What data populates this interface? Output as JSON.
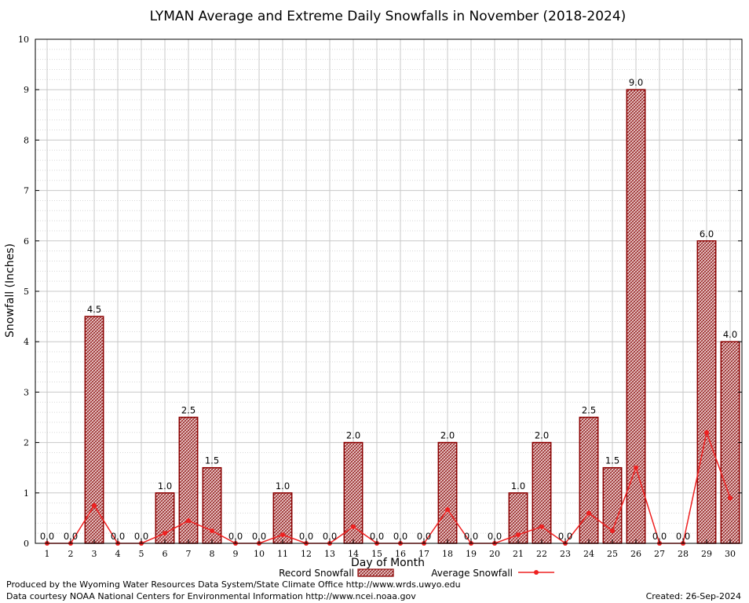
{
  "chart_data": {
    "type": "bar",
    "title": "LYMAN Average and Extreme Daily Snowfalls in November (2018-2024)",
    "xlabel": "Day of Month",
    "ylabel": "Snowfall (Inches)",
    "ylim": [
      0,
      10
    ],
    "yticks": [
      "0",
      "1",
      "2",
      "3",
      "4",
      "5",
      "6",
      "7",
      "8",
      "9",
      "10"
    ],
    "categories": [
      "1",
      "2",
      "3",
      "4",
      "5",
      "6",
      "7",
      "8",
      "9",
      "10",
      "11",
      "12",
      "13",
      "14",
      "15",
      "16",
      "17",
      "18",
      "19",
      "20",
      "21",
      "22",
      "23",
      "24",
      "25",
      "26",
      "27",
      "28",
      "29",
      "30"
    ],
    "series": [
      {
        "name": "Record Snowfall",
        "kind": "bar",
        "values": [
          0.0,
          0.0,
          4.5,
          0.0,
          0.0,
          1.0,
          2.5,
          1.5,
          0.0,
          0.0,
          1.0,
          0.0,
          0.0,
          2.0,
          0.0,
          0.0,
          0.0,
          2.0,
          0.0,
          0.0,
          1.0,
          2.0,
          0.0,
          2.5,
          1.5,
          9.0,
          0.0,
          0.0,
          6.0,
          4.0
        ],
        "labels": [
          "0.0",
          "0.0",
          "4.5",
          "0.0",
          "0.0",
          "1.0",
          "2.5",
          "1.5",
          "0.0",
          "0.0",
          "1.0",
          "0.0",
          "0.0",
          "2.0",
          "0.0",
          "0.0",
          "0.0",
          "2.0",
          "0.0",
          "0.0",
          "1.0",
          "2.0",
          "0.0",
          "2.5",
          "1.5",
          "9.0",
          "0.0",
          "0.0",
          "6.0",
          "4.0"
        ]
      },
      {
        "name": "Average Snowfall",
        "kind": "line",
        "values": [
          0.0,
          0.0,
          0.75,
          0.0,
          0.0,
          0.2,
          0.45,
          0.25,
          0.0,
          0.0,
          0.17,
          0.0,
          0.0,
          0.33,
          0.0,
          0.0,
          0.0,
          0.67,
          0.0,
          0.0,
          0.17,
          0.33,
          0.0,
          0.6,
          0.25,
          1.5,
          0.0,
          0.0,
          2.2,
          0.9
        ]
      }
    ],
    "grid": true,
    "legend_position": "bottom",
    "colors": {
      "bar_fill": "#8b1a1a",
      "bar_edge": "#8b0000",
      "line": "#ee2020",
      "grid": "#c8c8c8"
    }
  },
  "footer": {
    "produced_by": "Produced by the Wyoming Water Resources Data System/State Climate Office http://www.wrds.uwyo.edu",
    "courtesy": "Data courtesy NOAA National Centers for Environmental Information http://www.ncei.noaa.gov",
    "created": "Created: 26-Sep-2024"
  }
}
